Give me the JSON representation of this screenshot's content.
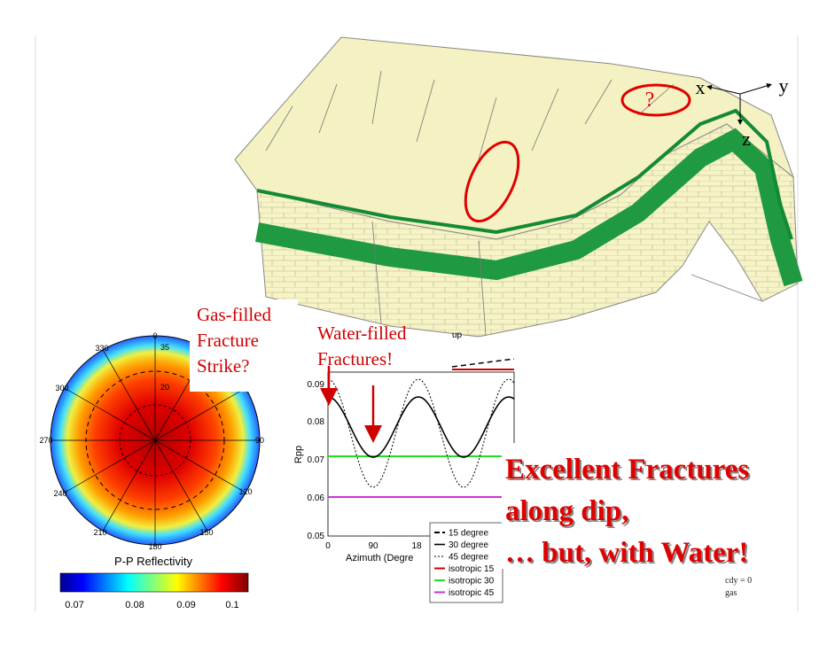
{
  "block_diagram": {
    "question_mark": "?",
    "axes": {
      "x": "x",
      "y": "y",
      "z": "z"
    }
  },
  "callouts": {
    "gas": [
      "Gas-filled",
      "Fracture",
      "Strike?"
    ],
    "water": [
      "Water-filled",
      "Fractures!"
    ]
  },
  "polar_plot": {
    "angle_labels": [
      "0",
      "330",
      "300",
      "270",
      "240",
      "210",
      "180",
      "150",
      "120",
      "90"
    ],
    "ring_labels": [
      "35",
      "20"
    ],
    "title": "P-P Reflectivity",
    "colorbar_labels": [
      "0.07",
      "0.08",
      "0.09",
      "0.1"
    ]
  },
  "line_plot": {
    "title_fragment": "up",
    "y_label": "Rpp",
    "y_ticks": [
      "0.09",
      "0.08",
      "0.07",
      "0.06",
      "0.05"
    ],
    "x_ticks": [
      "0",
      "90",
      "18"
    ],
    "x_label": "Azimuth (Degre",
    "legend": [
      "15 degree",
      "30 degree",
      "45 degree",
      "isotropic 15",
      "isotropic 30",
      "isotropic 45"
    ]
  },
  "conclusion": [
    "Excellent Fractures",
    "along dip,",
    "… but, with Water!"
  ],
  "footnote": [
    "cdy = 0",
    "gas"
  ]
}
